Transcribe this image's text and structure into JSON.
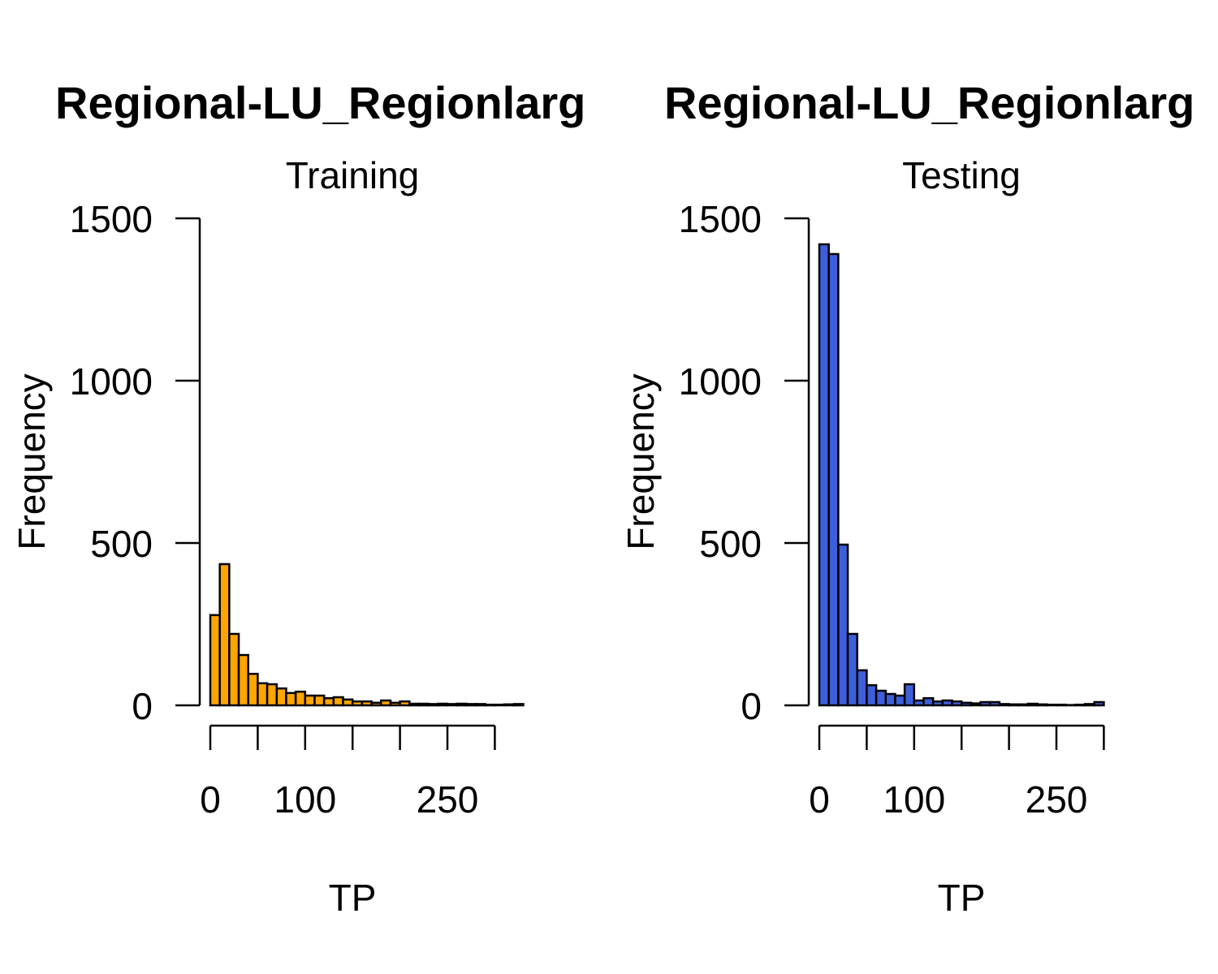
{
  "chart_data": [
    {
      "type": "bar",
      "title": "Regional-LU_Regionlarg",
      "subtitle": "Training",
      "xlabel": "TP",
      "ylabel": "Frequency",
      "bar_color": "#FFA500",
      "bin_width": 10,
      "x_start": 0,
      "xlim": [
        0,
        310
      ],
      "ylim": [
        0,
        1500
      ],
      "x_ticks": [
        0,
        50,
        100,
        150,
        200,
        250,
        300
      ],
      "x_tick_labels": [
        "0",
        "",
        "100",
        "",
        "",
        "250",
        ""
      ],
      "y_ticks": [
        0,
        500,
        1000,
        1500
      ],
      "y_tick_labels": [
        "0",
        "500",
        "1000",
        "1500"
      ],
      "values": [
        278,
        435,
        220,
        155,
        97,
        68,
        65,
        52,
        38,
        42,
        30,
        30,
        22,
        25,
        18,
        12,
        12,
        8,
        15,
        8,
        12,
        5,
        5,
        4,
        5,
        4,
        5,
        4,
        4,
        2,
        2,
        3,
        4
      ]
    },
    {
      "type": "bar",
      "title": "Regional-LU_Regionlarg",
      "subtitle": "Testing",
      "xlabel": "TP",
      "ylabel": "Frequency",
      "bar_color": "#3E5FDB",
      "bin_width": 10,
      "x_start": 0,
      "xlim": [
        0,
        310
      ],
      "ylim": [
        0,
        1500
      ],
      "x_ticks": [
        0,
        50,
        100,
        150,
        200,
        250,
        300
      ],
      "x_tick_labels": [
        "0",
        "",
        "100",
        "",
        "",
        "250",
        ""
      ],
      "y_ticks": [
        0,
        500,
        1000,
        1500
      ],
      "y_tick_labels": [
        "0",
        "500",
        "1000",
        "1500"
      ],
      "values": [
        1420,
        1390,
        495,
        220,
        108,
        62,
        45,
        35,
        30,
        65,
        15,
        22,
        12,
        15,
        12,
        8,
        6,
        10,
        10,
        4,
        3,
        3,
        5,
        3,
        2,
        2,
        1,
        2,
        4,
        10
      ]
    }
  ]
}
